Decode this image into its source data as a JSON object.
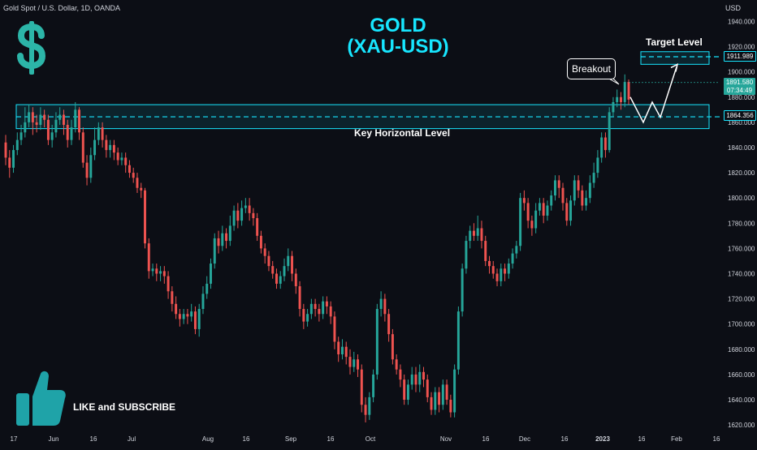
{
  "header": {
    "symbol": "Gold Spot / U.S. Dollar, 1D, OANDA",
    "currency": "USD"
  },
  "title": {
    "line1": "GOLD",
    "line2": "(XAU-USD)"
  },
  "annotations": {
    "target": "Target Level",
    "breakout": "Breakout",
    "key_level": "Key Horizontal Level",
    "subscribe": "LIKE and SUBSCRIBE"
  },
  "price_tags": {
    "target": "1911.989",
    "current_price": "1891.580",
    "countdown": "07:34:49",
    "key_level": "1864.356"
  },
  "colors": {
    "background": "#0c0e15",
    "up": "#26a69a",
    "down": "#ef5350",
    "zone": "#17e6ff",
    "title": "#17e6ff",
    "dollar_icon": "#2cb5a8",
    "thumbs_icon": "#1fa3a8",
    "current_tag": "#26a69a"
  },
  "icons": {
    "dollar": "dollar-sign-icon",
    "thumbs": "thumbs-up-icon"
  },
  "chart_data": {
    "type": "candlestick",
    "y_axis": {
      "ticks": [
        "1940.000",
        "1920.000",
        "1900.000",
        "1880.000",
        "1860.000",
        "1840.000",
        "1820.000",
        "1800.000",
        "1780.000",
        "1760.000",
        "1740.000",
        "1720.000",
        "1700.000",
        "1680.000",
        "1660.000",
        "1640.000",
        "1620.000"
      ],
      "range": [
        1613,
        1948
      ]
    },
    "x_axis": {
      "labels": [
        "17",
        "Jun",
        "16",
        "Jul",
        "Aug",
        "16",
        "Sep",
        "16",
        "Oct",
        "Nov",
        "16",
        "Dec",
        "16",
        "2023",
        "16",
        "Feb",
        "16"
      ]
    },
    "key_horizontal_level": 1864.356,
    "key_zone": [
      1855,
      1874
    ],
    "target_level": 1911.989,
    "target_zone": [
      1906,
      1916
    ],
    "current_price": 1891.58,
    "projected_path": [
      1880,
      1860,
      1876,
      1864,
      1904
    ],
    "candles": [
      [
        1844,
        1832,
        1850,
        1826
      ],
      [
        1832,
        1824,
        1838,
        1816
      ],
      [
        1824,
        1838,
        1842,
        1820
      ],
      [
        1838,
        1846,
        1852,
        1834
      ],
      [
        1846,
        1852,
        1858,
        1842
      ],
      [
        1852,
        1860,
        1872,
        1848
      ],
      [
        1860,
        1868,
        1874,
        1856
      ],
      [
        1868,
        1860,
        1872,
        1850
      ],
      [
        1860,
        1858,
        1866,
        1852
      ],
      [
        1858,
        1866,
        1872,
        1854
      ],
      [
        1866,
        1862,
        1870,
        1856
      ],
      [
        1862,
        1846,
        1866,
        1842
      ],
      [
        1846,
        1852,
        1858,
        1840
      ],
      [
        1852,
        1862,
        1868,
        1848
      ],
      [
        1862,
        1866,
        1872,
        1858
      ],
      [
        1866,
        1858,
        1870,
        1850
      ],
      [
        1858,
        1846,
        1862,
        1840
      ],
      [
        1846,
        1856,
        1862,
        1842
      ],
      [
        1856,
        1870,
        1876,
        1852
      ],
      [
        1870,
        1852,
        1872,
        1846
      ],
      [
        1852,
        1828,
        1856,
        1824
      ],
      [
        1828,
        1816,
        1834,
        1810
      ],
      [
        1816,
        1834,
        1840,
        1812
      ],
      [
        1834,
        1846,
        1856,
        1830
      ],
      [
        1846,
        1856,
        1860,
        1842
      ],
      [
        1856,
        1846,
        1860,
        1840
      ],
      [
        1846,
        1838,
        1850,
        1832
      ],
      [
        1838,
        1842,
        1846,
        1832
      ],
      [
        1842,
        1836,
        1846,
        1830
      ],
      [
        1836,
        1830,
        1840,
        1826
      ],
      [
        1830,
        1832,
        1836,
        1826
      ],
      [
        1832,
        1826,
        1836,
        1820
      ],
      [
        1826,
        1820,
        1830,
        1816
      ],
      [
        1820,
        1816,
        1824,
        1812
      ],
      [
        1816,
        1808,
        1820,
        1804
      ],
      [
        1808,
        1806,
        1812,
        1800
      ],
      [
        1806,
        1764,
        1808,
        1760
      ],
      [
        1764,
        1742,
        1768,
        1736
      ],
      [
        1742,
        1744,
        1748,
        1738
      ],
      [
        1744,
        1740,
        1748,
        1734
      ],
      [
        1740,
        1742,
        1746,
        1734
      ],
      [
        1742,
        1738,
        1746,
        1732
      ],
      [
        1738,
        1726,
        1742,
        1720
      ],
      [
        1726,
        1716,
        1730,
        1710
      ],
      [
        1716,
        1708,
        1722,
        1704
      ],
      [
        1708,
        1704,
        1712,
        1698
      ],
      [
        1704,
        1708,
        1712,
        1700
      ],
      [
        1708,
        1706,
        1712,
        1700
      ],
      [
        1706,
        1710,
        1716,
        1702
      ],
      [
        1710,
        1696,
        1714,
        1692
      ],
      [
        1696,
        1712,
        1716,
        1690
      ],
      [
        1712,
        1724,
        1730,
        1708
      ],
      [
        1724,
        1732,
        1738,
        1720
      ],
      [
        1732,
        1748,
        1752,
        1728
      ],
      [
        1748,
        1768,
        1772,
        1744
      ],
      [
        1768,
        1762,
        1774,
        1756
      ],
      [
        1762,
        1772,
        1778,
        1758
      ],
      [
        1772,
        1766,
        1776,
        1760
      ],
      [
        1766,
        1778,
        1786,
        1762
      ],
      [
        1778,
        1790,
        1794,
        1774
      ],
      [
        1790,
        1782,
        1796,
        1776
      ],
      [
        1782,
        1792,
        1798,
        1778
      ],
      [
        1792,
        1794,
        1800,
        1788
      ],
      [
        1794,
        1788,
        1800,
        1782
      ],
      [
        1788,
        1784,
        1792,
        1778
      ],
      [
        1784,
        1770,
        1788,
        1766
      ],
      [
        1770,
        1760,
        1774,
        1756
      ],
      [
        1760,
        1754,
        1764,
        1748
      ],
      [
        1754,
        1746,
        1758,
        1742
      ],
      [
        1746,
        1740,
        1750,
        1736
      ],
      [
        1740,
        1732,
        1744,
        1728
      ],
      [
        1732,
        1738,
        1742,
        1728
      ],
      [
        1738,
        1746,
        1752,
        1734
      ],
      [
        1746,
        1754,
        1760,
        1742
      ],
      [
        1754,
        1740,
        1758,
        1734
      ],
      [
        1740,
        1730,
        1744,
        1724
      ],
      [
        1730,
        1712,
        1734,
        1706
      ],
      [
        1712,
        1702,
        1716,
        1696
      ],
      [
        1702,
        1708,
        1712,
        1698
      ],
      [
        1708,
        1716,
        1720,
        1704
      ],
      [
        1716,
        1712,
        1720,
        1706
      ],
      [
        1712,
        1708,
        1716,
        1702
      ],
      [
        1708,
        1718,
        1722,
        1704
      ],
      [
        1718,
        1714,
        1722,
        1708
      ],
      [
        1714,
        1706,
        1718,
        1700
      ],
      [
        1706,
        1686,
        1710,
        1680
      ],
      [
        1686,
        1676,
        1690,
        1670
      ],
      [
        1676,
        1682,
        1688,
        1672
      ],
      [
        1682,
        1674,
        1686,
        1668
      ],
      [
        1674,
        1666,
        1680,
        1660
      ],
      [
        1666,
        1672,
        1678,
        1662
      ],
      [
        1672,
        1664,
        1676,
        1658
      ],
      [
        1664,
        1636,
        1668,
        1630
      ],
      [
        1636,
        1628,
        1642,
        1622
      ],
      [
        1628,
        1642,
        1646,
        1624
      ],
      [
        1642,
        1660,
        1664,
        1638
      ],
      [
        1660,
        1712,
        1716,
        1656
      ],
      [
        1712,
        1720,
        1726,
        1706
      ],
      [
        1720,
        1708,
        1724,
        1702
      ],
      [
        1708,
        1692,
        1712,
        1686
      ],
      [
        1692,
        1672,
        1696,
        1668
      ],
      [
        1672,
        1664,
        1676,
        1660
      ],
      [
        1664,
        1656,
        1668,
        1650
      ],
      [
        1656,
        1640,
        1660,
        1636
      ],
      [
        1640,
        1652,
        1656,
        1636
      ],
      [
        1652,
        1660,
        1666,
        1648
      ],
      [
        1660,
        1652,
        1666,
        1646
      ],
      [
        1652,
        1662,
        1668,
        1646
      ],
      [
        1662,
        1656,
        1666,
        1650
      ],
      [
        1656,
        1642,
        1660,
        1638
      ],
      [
        1642,
        1632,
        1646,
        1628
      ],
      [
        1632,
        1646,
        1650,
        1628
      ],
      [
        1646,
        1636,
        1650,
        1630
      ],
      [
        1636,
        1652,
        1656,
        1632
      ],
      [
        1652,
        1640,
        1656,
        1636
      ],
      [
        1640,
        1630,
        1644,
        1626
      ],
      [
        1630,
        1664,
        1668,
        1626
      ],
      [
        1664,
        1710,
        1714,
        1660
      ],
      [
        1710,
        1744,
        1748,
        1706
      ],
      [
        1744,
        1766,
        1770,
        1740
      ],
      [
        1766,
        1774,
        1778,
        1760
      ],
      [
        1774,
        1770,
        1780,
        1766
      ],
      [
        1770,
        1776,
        1786,
        1766
      ],
      [
        1776,
        1766,
        1782,
        1760
      ],
      [
        1766,
        1750,
        1770,
        1746
      ],
      [
        1750,
        1746,
        1754,
        1740
      ],
      [
        1746,
        1740,
        1750,
        1736
      ],
      [
        1740,
        1734,
        1744,
        1730
      ],
      [
        1734,
        1744,
        1748,
        1730
      ],
      [
        1744,
        1740,
        1748,
        1734
      ],
      [
        1740,
        1748,
        1752,
        1736
      ],
      [
        1748,
        1756,
        1760,
        1744
      ],
      [
        1756,
        1762,
        1766,
        1752
      ],
      [
        1762,
        1800,
        1804,
        1758
      ],
      [
        1800,
        1796,
        1806,
        1790
      ],
      [
        1796,
        1782,
        1800,
        1776
      ],
      [
        1782,
        1776,
        1786,
        1770
      ],
      [
        1776,
        1790,
        1796,
        1772
      ],
      [
        1790,
        1796,
        1800,
        1786
      ],
      [
        1796,
        1786,
        1800,
        1780
      ],
      [
        1786,
        1794,
        1798,
        1782
      ],
      [
        1794,
        1802,
        1806,
        1790
      ],
      [
        1802,
        1814,
        1818,
        1798
      ],
      [
        1814,
        1808,
        1818,
        1800
      ],
      [
        1808,
        1796,
        1812,
        1790
      ],
      [
        1796,
        1782,
        1800,
        1778
      ],
      [
        1782,
        1798,
        1802,
        1778
      ],
      [
        1798,
        1814,
        1818,
        1794
      ],
      [
        1814,
        1806,
        1818,
        1800
      ],
      [
        1806,
        1794,
        1810,
        1790
      ],
      [
        1794,
        1800,
        1806,
        1790
      ],
      [
        1800,
        1812,
        1818,
        1796
      ],
      [
        1812,
        1820,
        1828,
        1808
      ],
      [
        1820,
        1832,
        1838,
        1816
      ],
      [
        1832,
        1848,
        1852,
        1828
      ],
      [
        1848,
        1838,
        1852,
        1832
      ],
      [
        1838,
        1868,
        1872,
        1836
      ],
      [
        1868,
        1876,
        1880,
        1864
      ],
      [
        1876,
        1880,
        1886,
        1872
      ],
      [
        1880,
        1876,
        1884,
        1870
      ],
      [
        1876,
        1892,
        1898,
        1872
      ],
      [
        1892,
        1878,
        1894,
        1874
      ]
    ]
  }
}
